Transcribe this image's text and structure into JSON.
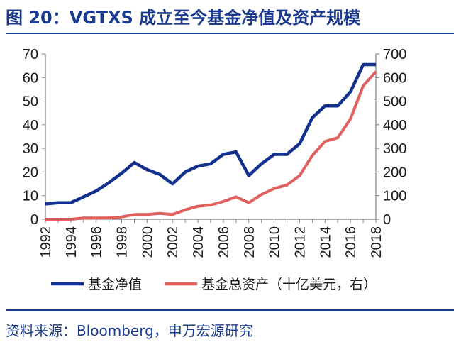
{
  "header": {
    "title": "图 20：VGTXS 成立至今基金净值及资产规模"
  },
  "footer": {
    "source": "资料来源：Bloomberg，申万宏源研究"
  },
  "colors": {
    "nav": "#12318f",
    "assets": "#e0605e",
    "title": "#1a3a8f"
  },
  "chart_data": {
    "type": "line",
    "title": "VGTXS 成立至今基金净值及资产规模",
    "x": [
      1992,
      1993,
      1994,
      1995,
      1996,
      1997,
      1998,
      1999,
      2000,
      2001,
      2002,
      2003,
      2004,
      2005,
      2006,
      2007,
      2008,
      2009,
      2010,
      2011,
      2012,
      2013,
      2014,
      2015,
      2016,
      2017,
      2018
    ],
    "x_tick_labels": [
      "1992",
      "1994",
      "1996",
      "1998",
      "2000",
      "2002",
      "2004",
      "2006",
      "2008",
      "2010",
      "2012",
      "2014",
      "2016",
      "2018"
    ],
    "xlim": [
      1992,
      2018
    ],
    "y_left": {
      "ylim": [
        0,
        70
      ],
      "ticks": [
        "0",
        "10",
        "20",
        "30",
        "40",
        "50",
        "60",
        "70"
      ]
    },
    "y_right": {
      "ylim": [
        0,
        700
      ],
      "ticks": [
        "0",
        "100",
        "200",
        "300",
        "400",
        "500",
        "600",
        "700"
      ]
    },
    "series": [
      {
        "name": "基金净值",
        "axis": "left",
        "color": "#12318f",
        "values": [
          6.5,
          7,
          7,
          9.5,
          12,
          15.5,
          19.5,
          24,
          21,
          19,
          15,
          20,
          22.5,
          23.5,
          27.5,
          28.5,
          18.5,
          23.5,
          27.5,
          27.5,
          32,
          43,
          48,
          48,
          54,
          65.5,
          65.5
        ]
      },
      {
        "name": "基金总资产（十亿美元，右）",
        "axis": "right",
        "color": "#e0605e",
        "values": [
          0,
          0,
          0,
          5,
          5,
          5,
          10,
          20,
          20,
          25,
          20,
          40,
          55,
          60,
          75,
          95,
          70,
          105,
          130,
          145,
          185,
          270,
          330,
          345,
          425,
          565,
          625
        ]
      }
    ],
    "legend": {
      "position": "bottom",
      "items": [
        {
          "label": "基金净值",
          "color": "#12318f"
        },
        {
          "label": "基金总资产（十亿美元，右）",
          "color": "#e0605e"
        }
      ]
    },
    "grid": false
  }
}
